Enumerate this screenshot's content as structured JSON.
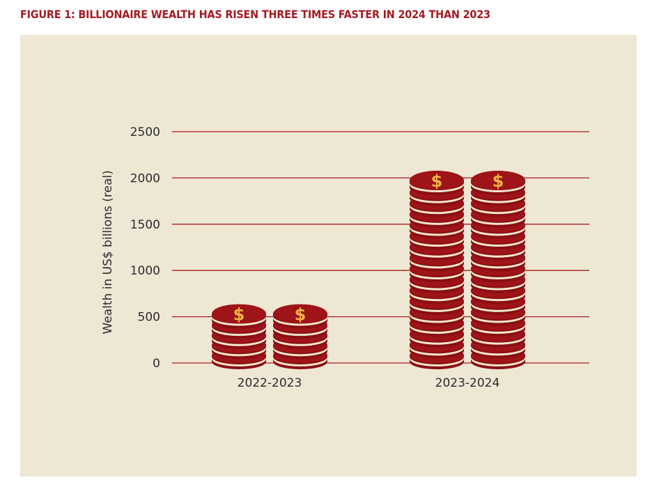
{
  "figure": {
    "title": "FIGURE 1: BILLIONAIRE WEALTH HAS RISEN THREE TIMES FASTER IN 2024 THAN 2023"
  },
  "colors": {
    "title": "#a41c24",
    "panel": "#eee7d4",
    "gridline": "#a41c24",
    "coin_dark": "#8a0f14",
    "coin_face": "#9e1418",
    "coin_gap": "#f4e6cc",
    "dollar": "#f2b544"
  },
  "chart_data": {
    "type": "bar",
    "style": "stacked coin pictogram",
    "categories": [
      "2022-2023",
      "2023-2024"
    ],
    "values": [
      550,
      2000
    ],
    "ylabel": "Wealth in US$ billions (real)",
    "xlabel": "",
    "ylim": [
      0,
      2500
    ],
    "yticks": [
      0,
      500,
      1000,
      1500,
      2000,
      2500
    ],
    "grid": true,
    "legend": "none",
    "icon": "dollar-coin-icon",
    "coin_symbol": "$"
  }
}
